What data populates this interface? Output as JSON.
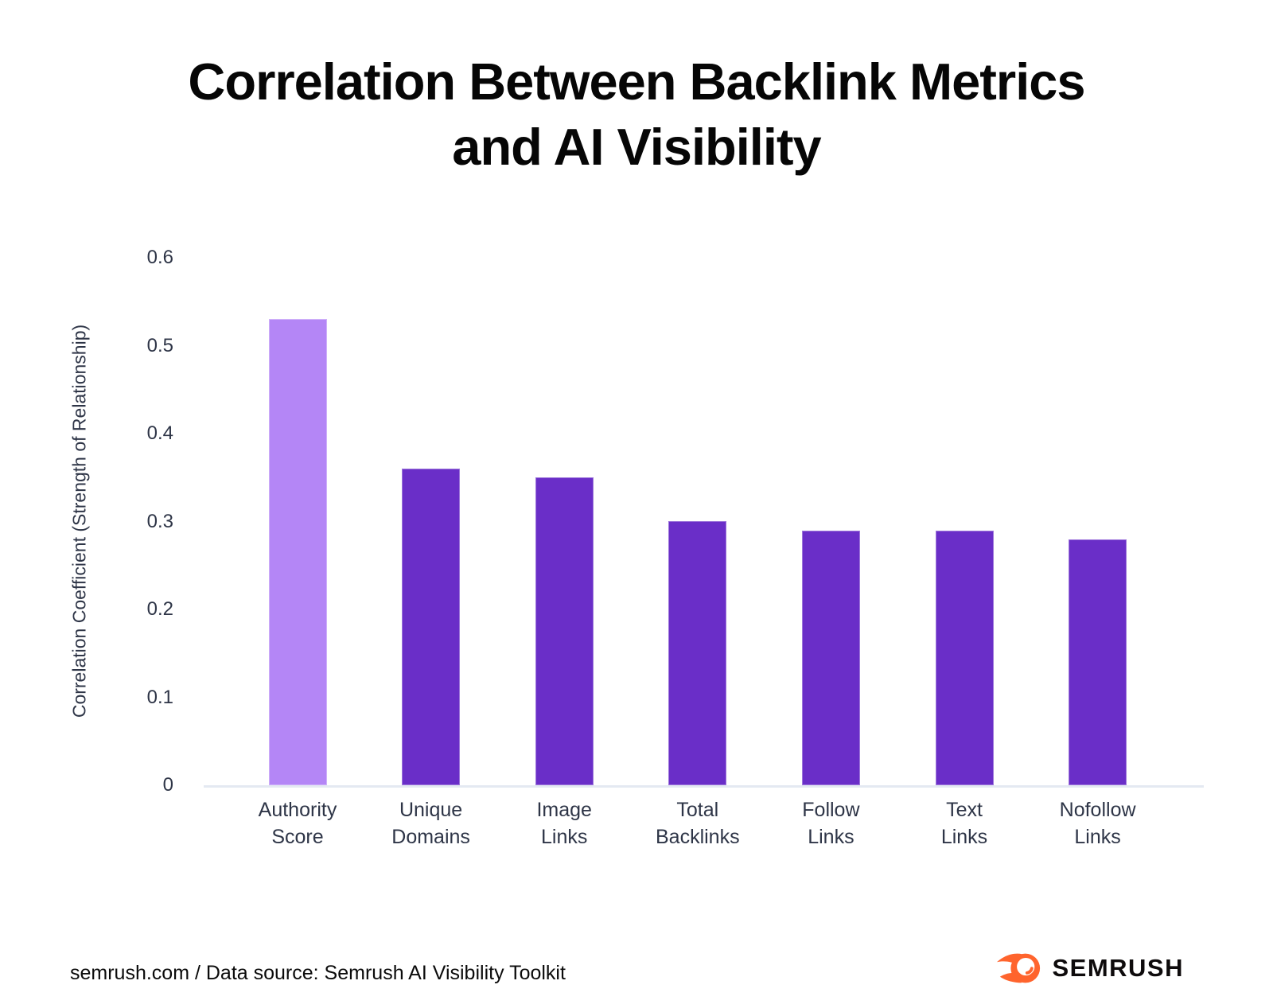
{
  "title_lines": [
    "Correlation Between Backlink Metrics",
    "and AI Visibility"
  ],
  "chart_data": {
    "type": "bar",
    "title": "Correlation Between Backlink Metrics and AI Visibility",
    "categories": [
      "Authority Score",
      "Unique Domains",
      "Image Links",
      "Total Backlinks",
      "Follow Links",
      "Text Links",
      "Nofollow Links"
    ],
    "category_label_lines": [
      [
        "Authority",
        "Score"
      ],
      [
        "Unique",
        "Domains"
      ],
      [
        "Image",
        "Links"
      ],
      [
        "Total",
        "Backlinks"
      ],
      [
        "Follow",
        "Links"
      ],
      [
        "Text",
        "Links"
      ],
      [
        "Nofollow",
        "Links"
      ]
    ],
    "values": [
      0.53,
      0.36,
      0.35,
      0.3,
      0.29,
      0.29,
      0.28
    ],
    "xlabel": "",
    "ylabel": "Correlation Coefficient (Strength of Relationship)",
    "ylim": [
      0,
      0.6
    ],
    "yticks": [
      0,
      0.1,
      0.2,
      0.3,
      0.4,
      0.5,
      0.6
    ],
    "ytick_labels": [
      "0",
      "0.1",
      "0.2",
      "0.3",
      "0.4",
      "0.5",
      "0.6"
    ],
    "grid": false,
    "legend": false,
    "highlight_index": 0,
    "colors": {
      "highlight_bar": "#b486f6",
      "default_bar": "#6a2ec8"
    }
  },
  "footer": {
    "source_text": "semrush.com / Data source: Semrush AI Visibility Toolkit",
    "brand": "SEMRUSH"
  },
  "colors": {
    "background": "#ffffff",
    "title_text": "#060606",
    "axis_text": "#2e3547",
    "baseline": "#e4e9f2",
    "brand_orange": "#ff642d",
    "brand_text": "#0e0b0c"
  }
}
